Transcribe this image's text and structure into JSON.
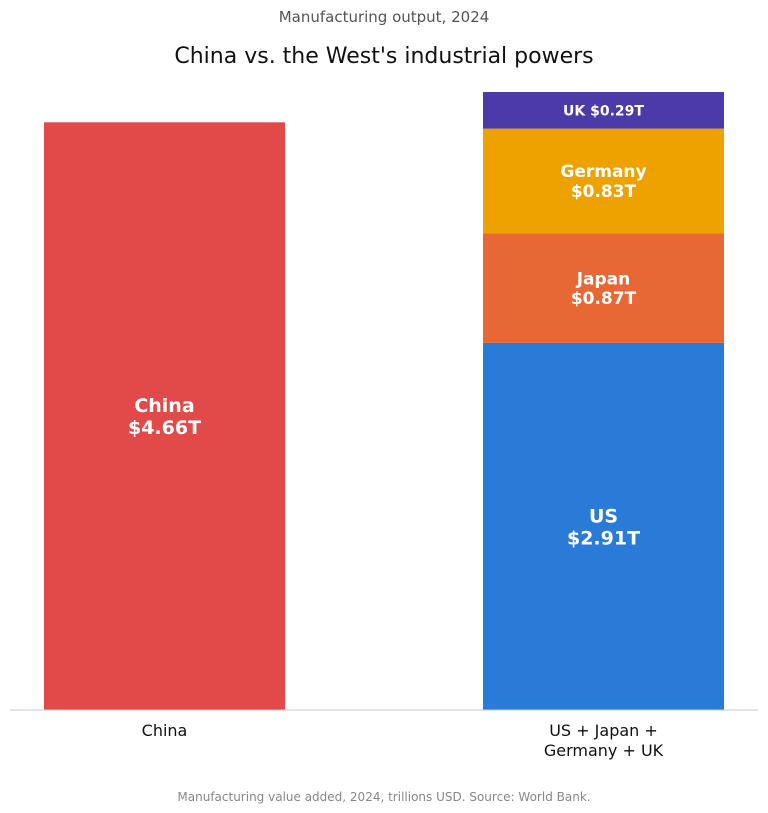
{
  "supertitle": "Manufacturing output, 2024",
  "footnote": "Manufacturing value added, 2024, trillions USD. Source: World Bank.",
  "chart_data": {
    "type": "bar",
    "stacked": true,
    "title": "China vs. the West's industrial powers",
    "xlabel": "",
    "ylabel": "",
    "ylim": [
      0,
      4.9
    ],
    "grid": false,
    "categories": [
      {
        "label_lines": [
          "China"
        ]
      },
      {
        "label_lines": [
          "US + Japan +",
          "Germany + UK"
        ]
      }
    ],
    "segments": [
      {
        "name": "China",
        "category": 0,
        "value": 4.66,
        "color": "#E24A4A",
        "label_lines": [
          "China",
          "$4.66T"
        ]
      },
      {
        "name": "US",
        "category": 1,
        "value": 2.91,
        "color": "#2A7AD8",
        "label_lines": [
          "US",
          "$2.91T"
        ]
      },
      {
        "name": "Japan",
        "category": 1,
        "value": 0.87,
        "color": "#E86835",
        "label_lines": [
          "Japan",
          "$0.87T"
        ]
      },
      {
        "name": "Germany",
        "category": 1,
        "value": 0.83,
        "color": "#EDA200",
        "label_lines": [
          "Germany",
          "$0.83T"
        ]
      },
      {
        "name": "UK",
        "category": 1,
        "value": 0.29,
        "color": "#4B3AA8",
        "label_lines": [
          "UK $0.29T"
        ]
      }
    ]
  }
}
